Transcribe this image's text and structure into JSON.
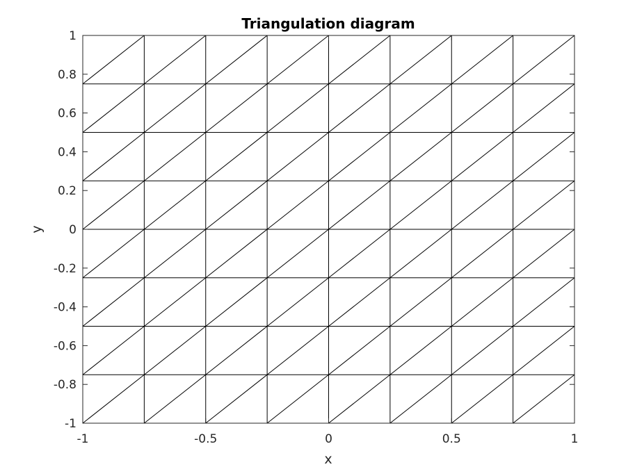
{
  "chart_data": {
    "type": "mesh",
    "title": "Triangulation diagram",
    "xlabel": "x",
    "ylabel": "y",
    "xlim": [
      -1,
      1
    ],
    "ylim": [
      -1,
      1
    ],
    "xticks": [
      -1,
      -0.5,
      0,
      0.5,
      1
    ],
    "xtick_labels": [
      "-1",
      "-0.5",
      "0",
      "0.5",
      "1"
    ],
    "yticks": [
      -1,
      -0.8,
      -0.6,
      -0.4,
      -0.2,
      0,
      0.2,
      0.4,
      0.6,
      0.8,
      1
    ],
    "ytick_labels": [
      "-1",
      "-0.8",
      "-0.6",
      "-0.4",
      "-0.2",
      "0",
      "0.2",
      "0.4",
      "0.6",
      "0.8",
      "1"
    ],
    "grid_nodes": [
      -1,
      -0.75,
      -0.5,
      -0.25,
      0,
      0.25,
      0.5,
      0.75,
      1
    ],
    "diagonal": "lower-left to upper-right in every cell",
    "line_color": "#000000",
    "grid": false,
    "box": true
  }
}
